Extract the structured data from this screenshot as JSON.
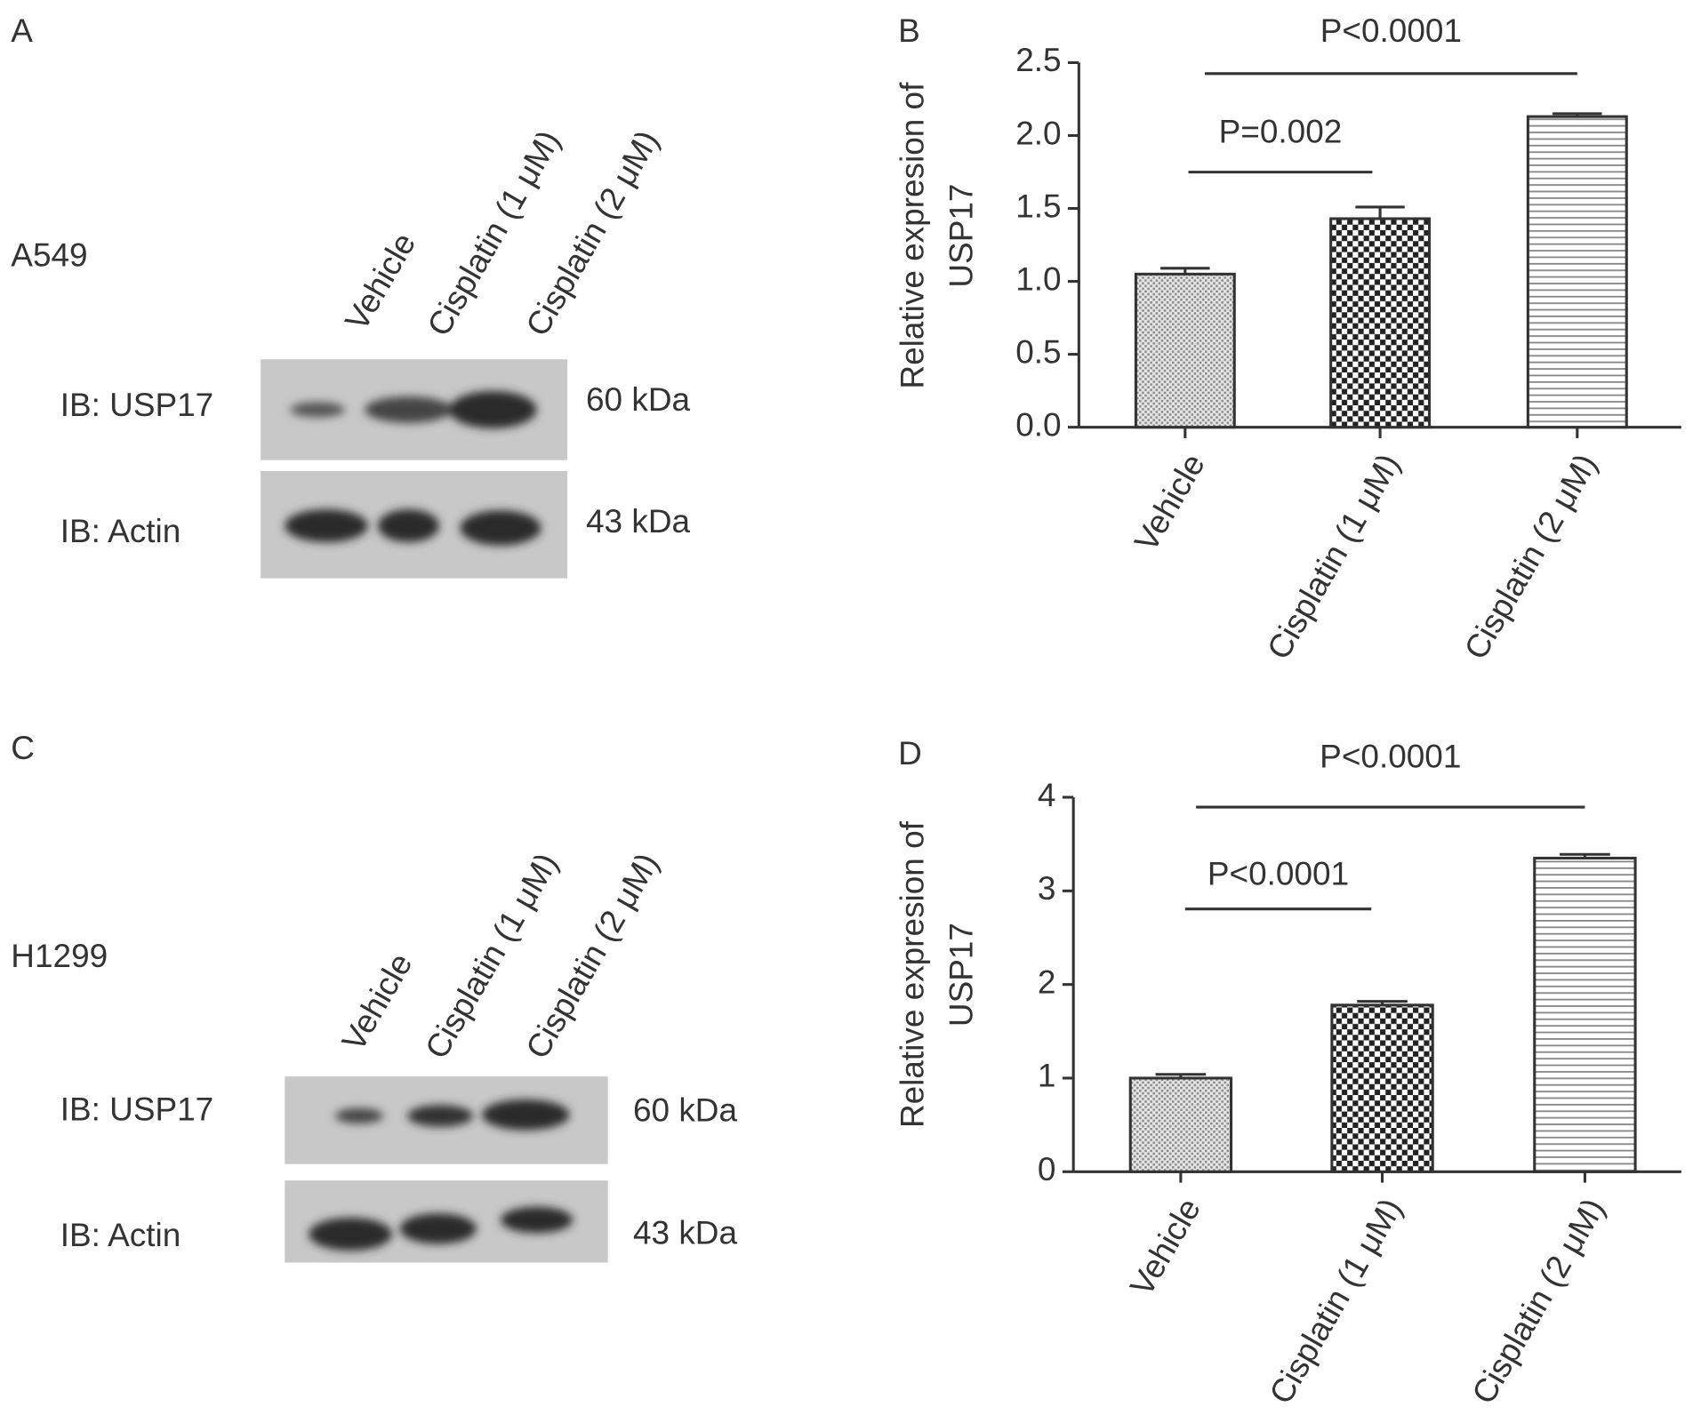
{
  "panels": [
    {
      "label": "A",
      "cell_line": "A549",
      "lanes": [
        "Vehicle",
        "Cisplatin (1 μM)",
        "Cisplatin (2 μM)"
      ],
      "blots": [
        {
          "label": "IB: USP17",
          "size": "60 kDa"
        },
        {
          "label": "IB: Actin",
          "size": "43 kDa"
        }
      ]
    },
    {
      "label": "C",
      "cell_line": "H1299",
      "lanes": [
        "Vehicle",
        "Cisplatin (1 μM)",
        "Cisplatin (2 μM)"
      ],
      "blots": [
        {
          "label": "IB: USP17",
          "size": "60 kDa"
        },
        {
          "label": "IB: Actin",
          "size": "43 kDa"
        }
      ]
    }
  ],
  "chart_data": [
    {
      "type": "bar",
      "panel": "B",
      "ylabel": [
        "Relative expresion of",
        "USP17"
      ],
      "categories": [
        "Vehicle",
        "Cisplatin (1 μM)",
        "Cisplatin (2 μM)"
      ],
      "values": [
        1.05,
        1.43,
        2.13
      ],
      "errors": [
        0.04,
        0.08,
        0.02
      ],
      "ylim": [
        0,
        2.5
      ],
      "yticks": [
        {
          "value": 0,
          "label": "0.0"
        },
        0.5,
        {
          "value": 1,
          "label": "1.0"
        },
        1.5,
        {
          "value": 2,
          "label": "2.0"
        },
        2.5
      ],
      "annotations": [
        "P=0.002",
        "P<0.0001"
      ]
    },
    {
      "type": "bar",
      "panel": "D",
      "ylabel": [
        "Relative expresion of",
        "USP17"
      ],
      "categories": [
        "Vehicle",
        "Cisplatin (1 μM)",
        "Cisplatin (2 μM)"
      ],
      "values": [
        1.0,
        1.78,
        3.35
      ],
      "errors": [
        0.04,
        0.04,
        0.04
      ],
      "ylim": [
        0,
        4
      ],
      "yticks": [
        0,
        1,
        2,
        3,
        4
      ],
      "annotations": [
        "P<0.0001",
        "P<0.0001"
      ]
    }
  ]
}
